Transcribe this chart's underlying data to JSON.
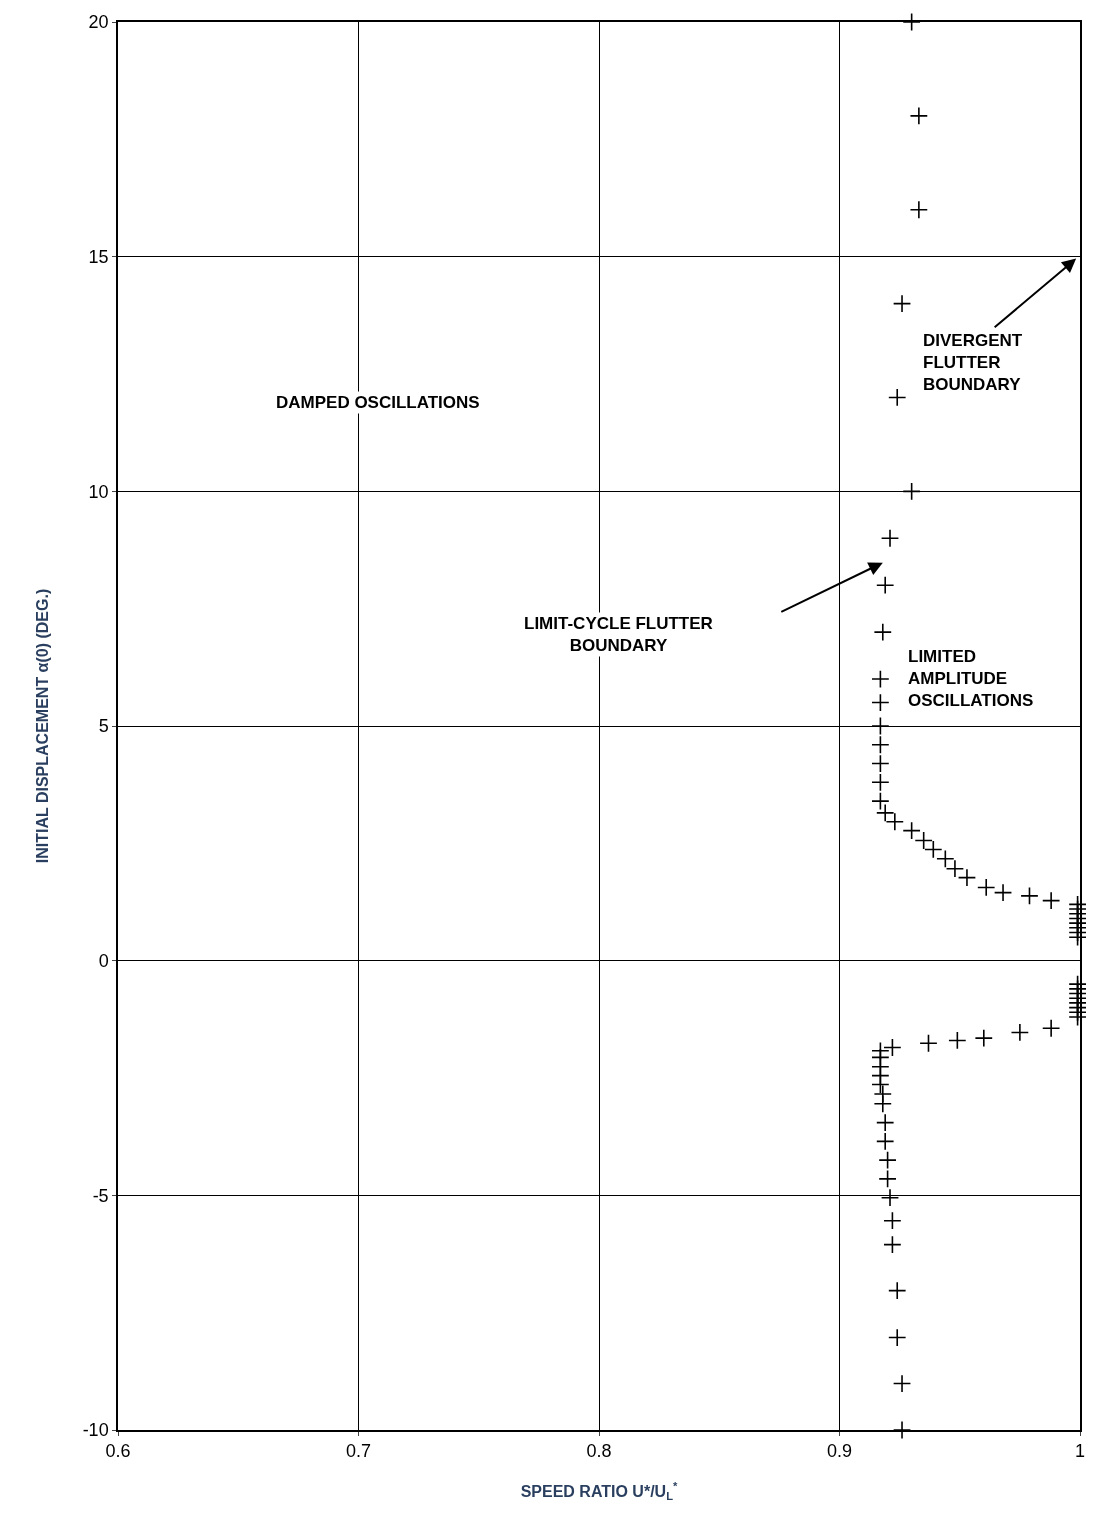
{
  "chart_data": {
    "type": "scatter",
    "xlabel": "SPEED RATIO U*/U$_{L}$$^{*}$",
    "ylabel": "INITIAL DISPLACEMENT α(0) (DEG.)",
    "x": [
      0.93,
      0.933,
      0.933,
      0.926,
      0.924,
      0.93,
      0.921,
      0.919,
      0.918,
      0.917,
      0.917,
      0.917,
      0.917,
      0.917,
      0.917,
      0.917,
      0.919,
      0.923,
      0.93,
      0.935,
      0.939,
      0.944,
      0.948,
      0.953,
      0.961,
      0.968,
      0.979,
      0.988,
      0.999,
      0.999,
      0.999,
      0.999,
      0.999,
      0.999,
      0.999,
      0.999,
      0.999,
      0.999,
      0.999,
      0.999,
      0.999,
      0.999,
      0.999,
      0.999,
      0.988,
      0.975,
      0.96,
      0.949,
      0.937,
      0.922,
      0.917,
      0.917,
      0.917,
      0.917,
      0.917,
      0.918,
      0.918,
      0.919,
      0.919,
      0.92,
      0.92,
      0.921,
      0.922,
      0.922,
      0.924,
      0.924,
      0.926,
      0.926
    ],
    "values": [
      20,
      18,
      16,
      14,
      12,
      10,
      9,
      8,
      7,
      6,
      5.5,
      5,
      4.6,
      4.2,
      3.8,
      3.4,
      3.15,
      2.96,
      2.77,
      2.56,
      2.37,
      2.17,
      1.96,
      1.77,
      1.56,
      1.45,
      1.38,
      1.28,
      1.2,
      1.1,
      1.0,
      0.9,
      0.8,
      0.7,
      0.6,
      0.5,
      -0.5,
      -0.6,
      -0.7,
      -0.8,
      -0.9,
      -1.0,
      -1.1,
      -1.2,
      -1.44,
      -1.53,
      -1.65,
      -1.7,
      -1.76,
      -1.85,
      -1.92,
      -2.06,
      -2.26,
      -2.45,
      -2.64,
      -2.84,
      -3.05,
      -3.45,
      -3.85,
      -4.25,
      -4.65,
      -5.05,
      -5.54,
      -6.05,
      -7.03,
      -8.03,
      -9.01,
      -10
    ],
    "color": "#000000",
    "marker": "cross",
    "xlim": [
      0.6,
      1
    ],
    "ylim": [
      -10,
      20
    ],
    "xticks": [
      0.6,
      0.7,
      0.8,
      0.9,
      1
    ],
    "yticks": [
      -10,
      -5,
      0,
      5,
      10,
      15,
      20
    ],
    "grid": true,
    "annotations": [
      "DAMPED OSCILLATIONS",
      "LIMIT-CYCLE FLUTTER\nBOUNDARY",
      "DIVERGENT\nFLUTTER\nBOUNDARY",
      "LIMITED\nAMPLITUDE\nOSCILLATIONS"
    ]
  }
}
